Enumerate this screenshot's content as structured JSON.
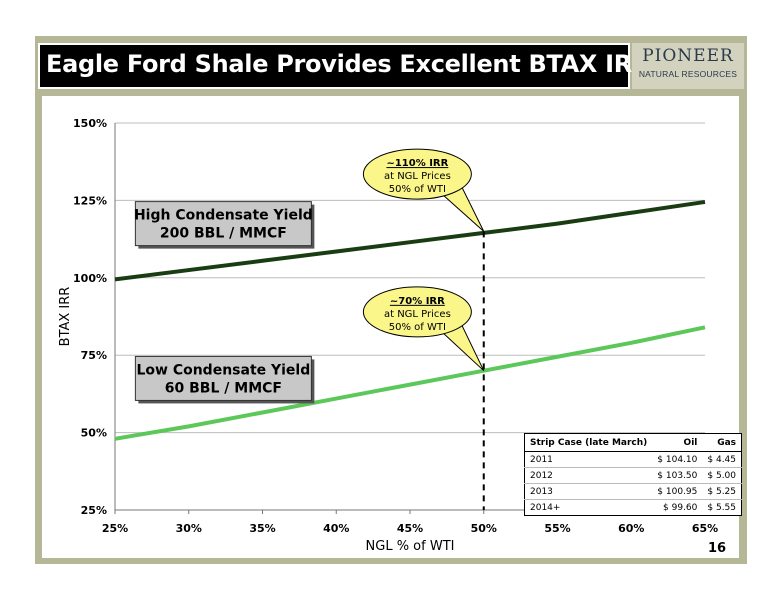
{
  "header": {
    "title": "Eagle Ford Shale Provides Excellent BTAX IRRs",
    "logo_main": "PIONEER",
    "logo_sub": "NATURAL RESOURCES"
  },
  "page_number": "16",
  "chart_data": {
    "type": "line",
    "xlabel": "NGL % of WTI",
    "ylabel": "BTAX IRR",
    "x_ticks": [
      "25%",
      "30%",
      "35%",
      "40%",
      "45%",
      "50%",
      "55%",
      "60%",
      "65%"
    ],
    "y_ticks": [
      "25%",
      "50%",
      "75%",
      "100%",
      "125%",
      "150%"
    ],
    "xlim": [
      25,
      65
    ],
    "ylim": [
      25,
      150
    ],
    "grid": "horizontal",
    "series": [
      {
        "name": "High Condensate Yield 200 BBL / MMCF",
        "color": "#1a3c12",
        "x": [
          25,
          30,
          35,
          40,
          45,
          50,
          55,
          60,
          65
        ],
        "y": [
          99.5,
          102.5,
          105.5,
          108.5,
          111.5,
          114.5,
          117.5,
          121,
          124.5
        ]
      },
      {
        "name": "Low Condensate Yield 60 BBL / MMCF",
        "color": "#5cc85a",
        "x": [
          25,
          30,
          35,
          40,
          45,
          50,
          55,
          60,
          65
        ],
        "y": [
          48,
          52,
          56.5,
          61,
          65.5,
          70,
          74.5,
          79,
          84
        ]
      }
    ],
    "vline_x": 50,
    "series_labels": [
      {
        "line1": "High Condensate Yield",
        "line2": "200 BBL / MMCF"
      },
      {
        "line1": "Low Condensate Yield",
        "line2": "60 BBL / MMCF"
      }
    ],
    "callouts": [
      {
        "title": "~110% IRR",
        "line2": "at NGL Prices",
        "line3": "50% of WTI",
        "x": 50,
        "y": 115
      },
      {
        "title": "~70% IRR",
        "line2": "at NGL Prices",
        "line3": "50% of WTI",
        "x": 50,
        "y": 70
      }
    ]
  },
  "strip_table": {
    "headers": [
      "Strip Case (late March)",
      "Oil",
      "Gas"
    ],
    "rows": [
      [
        "2011",
        "$ 104.10",
        "$ 4.45"
      ],
      [
        "2012",
        "$ 103.50",
        "$ 5.00"
      ],
      [
        "2013",
        "$ 100.95",
        "$ 5.25"
      ],
      [
        "2014+",
        "$ 99.60",
        "$ 5.55"
      ]
    ]
  },
  "colors": {
    "frame": "#b5b797",
    "high_line": "#1a3c12",
    "low_line": "#5cc85a",
    "callout_fill": "#faf68a",
    "label_box": "#c8c8c8"
  }
}
